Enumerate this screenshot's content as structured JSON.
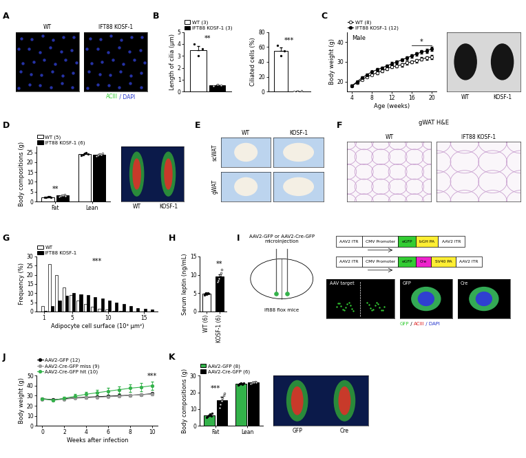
{
  "chart_data": [
    {
      "panel": "B",
      "type": "bar",
      "categories": [
        null
      ],
      "ylabel": "Length of cilia (μm)",
      "ylim": [
        0,
        5
      ],
      "yticks": [
        0,
        1,
        2,
        3,
        4,
        5
      ],
      "tick_labels": "y",
      "legend": "lower left",
      "series": [
        {
          "name": "WT (3)",
          "color": "#ffffff",
          "values": [
            3.5
          ],
          "errors": [
            0.35
          ],
          "points": [
            [
              4.0,
              3.0,
              3.6
            ]
          ]
        },
        {
          "name": "IFT88 KOSF-1 (3)",
          "color": "#000000",
          "values": [
            0.55
          ],
          "errors": [
            0.05
          ],
          "points": [
            [
              0.5,
              0.6,
              0.55
            ]
          ]
        }
      ],
      "annotations": [
        {
          "text": "**"
        }
      ]
    },
    {
      "type": "bar",
      "categories": [
        null
      ],
      "ylabel": "Ciliated cells (%)",
      "ylim": [
        0,
        80
      ],
      "yticks": [
        0,
        20,
        40,
        60,
        80
      ],
      "tick_labels": "y",
      "series": [
        {
          "color": "#ffffff",
          "values": [
            55
          ],
          "errors": [
            4
          ],
          "points": [
            [
              62,
              48,
              55
            ]
          ]
        },
        {
          "color": "#000000",
          "values": [
            0.5
          ],
          "errors": [
            0.3
          ],
          "points": [
            [
              0,
              0.5,
              1
            ]
          ]
        }
      ],
      "annotations": [
        {
          "text": "***"
        }
      ]
    },
    {
      "panel": "C",
      "type": "line",
      "xlabel": "Age (weeks)",
      "ylabel": "Body weight (g)",
      "subtitle": "Male",
      "x": [
        4,
        5,
        6,
        7,
        8,
        9,
        10,
        11,
        12,
        13,
        14,
        15,
        16,
        17,
        18,
        19,
        20
      ],
      "xlim": [
        3,
        21
      ],
      "xticks": [
        4,
        8,
        12,
        16,
        20
      ],
      "ylim": [
        15,
        45
      ],
      "yticks": [
        20,
        30,
        40
      ],
      "marker": "o",
      "legend": "lower left",
      "series": [
        {
          "name": "WT (8)",
          "color": "#ffffff",
          "values": [
            18,
            19.5,
            21,
            22.5,
            23.5,
            24.5,
            25.5,
            26.5,
            27.5,
            28,
            28.5,
            29.5,
            30,
            30.5,
            31.5,
            32,
            32.5
          ],
          "errors": [
            0.5,
            0.5,
            0.5,
            0.6,
            0.6,
            0.6,
            0.7,
            0.7,
            0.7,
            0.8,
            0.8,
            0.8,
            0.8,
            0.9,
            0.9,
            0.9,
            1.0
          ]
        },
        {
          "name": "IFT88 KOSF-1 (12)",
          "color": "#000000",
          "values": [
            18,
            20,
            22,
            23.5,
            25,
            26,
            27,
            28,
            29,
            30,
            31,
            32,
            33,
            34,
            35,
            35.5,
            36.5
          ],
          "errors": [
            0.5,
            0.5,
            0.6,
            0.6,
            0.6,
            0.7,
            0.7,
            0.7,
            0.8,
            0.8,
            0.8,
            0.9,
            0.9,
            0.9,
            1.0,
            1.0,
            1.0
          ]
        }
      ],
      "annotations": [
        {
          "text": "*",
          "x_range": [
            16,
            20
          ]
        }
      ],
      "image_labels": [
        "WT",
        "KOSF-1"
      ]
    },
    {
      "panel": "D",
      "type": "bar",
      "categories": [
        "Fat",
        "Lean"
      ],
      "ylabel": "Body compositions (g)",
      "ylim": [
        0,
        28
      ],
      "yticks": [
        0,
        5,
        10,
        15,
        20,
        25
      ],
      "legend": "lower left",
      "series": [
        {
          "name": "WT (5)",
          "color": "#ffffff",
          "values": [
            2.2,
            24.2
          ],
          "errors": [
            0.15,
            0.3
          ],
          "points": [
            [
              2.0,
              2.1,
              2.3,
              2.4,
              2.2
            ],
            [
              23.5,
              24.0,
              24.5,
              24.8,
              24.2
            ]
          ]
        },
        {
          "name": "IFT88 KOSF-1 (6)",
          "color": "#000000",
          "values": [
            3.0,
            23.8
          ],
          "errors": [
            0.3,
            0.4
          ],
          "points": [
            [
              2.5,
              2.8,
              3.0,
              3.3,
              3.6,
              2.9
            ],
            [
              23.0,
              23.5,
              24.0,
              24.2,
              23.8,
              24.5
            ]
          ]
        }
      ],
      "annotations": [
        {
          "text": "**",
          "category": "Fat"
        }
      ],
      "image_labels": [
        "WT",
        "KOSF-1"
      ]
    },
    {
      "panel": "G",
      "type": "histogram",
      "xlabel": "Adipocyte cell surface (10³ μm²)",
      "ylabel": "Frequency (%)",
      "bins": [
        0.5,
        1.5,
        2.5,
        3.5,
        4.5,
        5.5,
        6.5,
        7.5,
        8.5,
        9.5,
        10.5,
        11.5,
        12.5,
        13.5,
        14.5,
        15.5,
        16.5
      ],
      "xlim": [
        0,
        17
      ],
      "xticks": [
        1,
        5,
        10,
        15
      ],
      "ylim": [
        0,
        30
      ],
      "yticks": [
        0,
        5,
        10,
        15,
        20,
        25,
        30
      ],
      "legend": "lower left",
      "series": [
        {
          "name": "WT",
          "color": "#ffffff",
          "values": [
            3,
            26,
            20,
            13,
            9,
            6,
            4,
            2.5,
            1.5,
            1,
            0.5,
            0.3,
            0,
            0,
            0,
            0
          ]
        },
        {
          "name": "IFT88 KOSF-1",
          "color": "#000000",
          "values": [
            0.5,
            3,
            6,
            8.5,
            10,
            9.5,
            9,
            8,
            7,
            6,
            5,
            4,
            3,
            2,
            1.5,
            1
          ]
        }
      ],
      "annotations": [
        {
          "text": "***"
        }
      ]
    },
    {
      "panel": "H",
      "type": "bar",
      "categories": [
        "WT (6)",
        "KOSF-1 (6)"
      ],
      "ylabel": "Serum leptin (ng/mL)",
      "ylim": [
        0,
        15
      ],
      "yticks": [
        0,
        5,
        10,
        15
      ],
      "values": [
        4.8,
        9.6
      ],
      "colors": [
        "#ffffff",
        "#000000"
      ],
      "errors": [
        0.2,
        0.6
      ],
      "points": [
        [
          4.5,
          4.8,
          5.0,
          4.6,
          5.1,
          4.9
        ],
        [
          8.0,
          8.5,
          9.0,
          10.0,
          10.5,
          11.5
        ]
      ],
      "annotations": [
        {
          "text": "**",
          "category": "KOSF-1 (6)"
        }
      ]
    },
    {
      "panel": "J",
      "type": "line",
      "xlabel": "Weeks after infection",
      "ylabel": "Body weight (g)",
      "x": [
        0,
        1,
        2,
        3,
        4,
        5,
        6,
        7,
        8,
        9,
        10
      ],
      "xlim": [
        -0.5,
        10.5
      ],
      "xticks": [
        0,
        2,
        4,
        6,
        8,
        10
      ],
      "ylim": [
        0,
        50
      ],
      "yticks": [
        0,
        10,
        20,
        30,
        40,
        50
      ],
      "marker": "o",
      "legend": "lower left",
      "series": [
        {
          "name": "AAV2-GFP (12)",
          "color": "#000000",
          "values": [
            27,
            26,
            27,
            28,
            28.5,
            29,
            29.5,
            30,
            30.5,
            31,
            32
          ],
          "errors": [
            0.6,
            0.6,
            0.6,
            0.7,
            0.7,
            0.7,
            0.8,
            0.8,
            0.8,
            0.9,
            0.9
          ]
        },
        {
          "name": "AAV2-Cre-GFP miss (9)",
          "color": "#999999",
          "values": [
            26.5,
            25.5,
            26.5,
            27.5,
            28,
            28.5,
            29,
            29.5,
            30.5,
            31,
            31.5
          ],
          "errors": [
            0.6,
            0.6,
            0.6,
            0.7,
            0.7,
            0.7,
            0.8,
            0.8,
            0.8,
            0.9,
            0.9
          ]
        },
        {
          "name": "AAV2-Cre-GFP hit (10)",
          "color": "#33b24a",
          "values": [
            27,
            25.5,
            27.5,
            29.5,
            31.5,
            33,
            34.5,
            36,
            37.5,
            38.5,
            40
          ],
          "errors": [
            0.8,
            1.0,
            1.5,
            2.0,
            2.5,
            3.0,
            3.2,
            3.5,
            3.8,
            4.0,
            4.2
          ]
        }
      ],
      "annotations": [
        {
          "text": "***",
          "x": 10
        }
      ]
    },
    {
      "panel": "K",
      "type": "bar",
      "categories": [
        "Fat",
        "Lean"
      ],
      "ylabel": "Body compositions (g)",
      "ylim": [
        0,
        30
      ],
      "yticks": [
        0,
        10,
        20,
        30
      ],
      "legend": "lower left",
      "series": [
        {
          "name": "AAV2-GFP (8)",
          "color": "#33b24a",
          "values": [
            6.2,
            25.0
          ],
          "errors": [
            0.4,
            0.4
          ],
          "points": [
            [
              5.0,
              5.5,
              6.0,
              6.5,
              7.0,
              6.2,
              5.8,
              7.4
            ],
            [
              24.2,
              24.6,
              25.0,
              25.3,
              25.6,
              24.8,
              25.1,
              25.4
            ]
          ]
        },
        {
          "name": "AAV2-Cre-GFP (6)",
          "color": "#000000",
          "values": [
            15.5,
            25.8
          ],
          "errors": [
            1.8,
            0.4
          ],
          "points": [
            [
              11.0,
              13.0,
              15.0,
              16.5,
              18.0,
              19.5
            ],
            [
              25.2,
              25.5,
              25.8,
              26.0,
              26.3,
              26.1
            ]
          ]
        }
      ],
      "annotations": [
        {
          "text": "***",
          "category": "Fat"
        }
      ],
      "image_labels": [
        "GFP",
        "Cre"
      ]
    }
  ],
  "images": {
    "A": {
      "labels": [
        "WT",
        "IFT88 KOSF-1"
      ],
      "caption": [
        {
          "text": "ACIII",
          "color": "#33cc33"
        },
        {
          "text": " / DAPI",
          "color": "#2233cc"
        }
      ]
    },
    "E": {
      "columns": [
        "WT",
        "KOSF-1"
      ],
      "rows": [
        "scWAT",
        "gWAT"
      ]
    },
    "F": {
      "title": "gWAT H&E",
      "labels": [
        "WT",
        "IFT88 KOSF-1"
      ]
    },
    "I": {
      "injection": "AAV2-GFP or AAV2-Cre-GFP\nmicroinjection",
      "mouse": "Ift88 flox mice",
      "constructs": [
        [
          {
            "text": "AAV2 ITR",
            "color": "#ffffff"
          },
          {
            "text": "CMV Promoter",
            "color": "#ffffff"
          },
          {
            "text": "eGFP",
            "color": "#33cc33"
          },
          {
            "text": "bGH PA",
            "color": "#ffee33"
          },
          {
            "text": "AAV2 ITR",
            "color": "#ffffff"
          }
        ],
        [
          {
            "text": "AAV2 ITR",
            "color": "#ffffff"
          },
          {
            "text": "CMV Promoter",
            "color": "#ffffff"
          },
          {
            "text": "eGFP",
            "color": "#33cc33"
          },
          {
            "text": "Cre",
            "color": "#ee22cc"
          },
          {
            "text": "SV40 PA",
            "color": "#ffee33"
          },
          {
            "text": "AAV2 ITR",
            "color": "#ffffff"
          }
        ]
      ],
      "images": [
        "AAV target",
        "GFP",
        "Cre"
      ],
      "caption": [
        {
          "text": "GFP",
          "color": "#33cc33"
        },
        {
          "text": " / ",
          "color": "#000000"
        },
        {
          "text": "ACIII",
          "color": "#dd2222"
        },
        {
          "text": " / DAPI",
          "color": "#2233cc"
        }
      ]
    }
  }
}
